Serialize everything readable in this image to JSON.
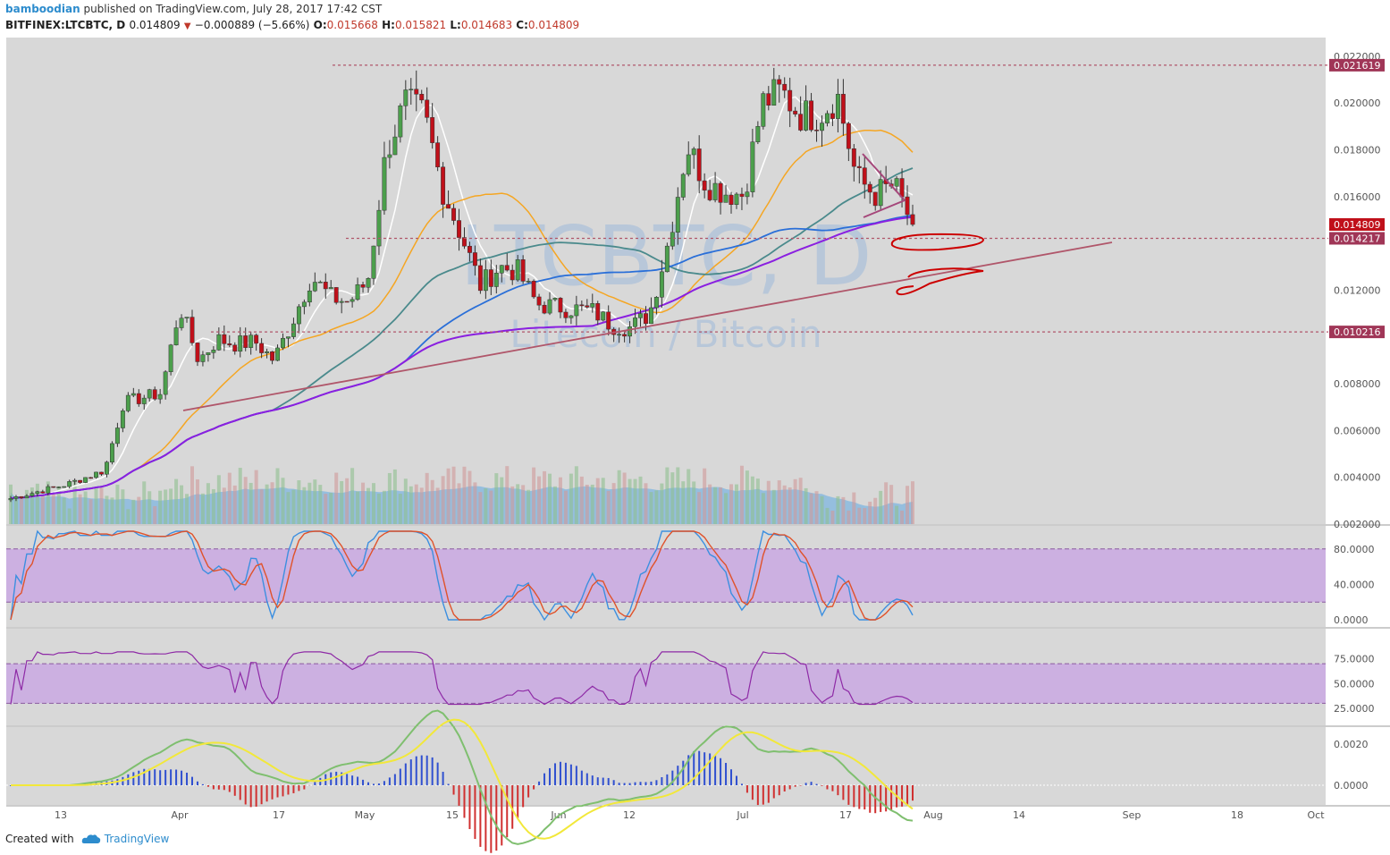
{
  "header": {
    "user": "bamboodian",
    "published_text": "published on TradingView.com, July 28, 2017 17:42 CST",
    "symbol": "BITFINEX:LTCBTC, D",
    "last": "0.014809",
    "change": "−0.000889 (−5.66%)",
    "o_label": "O:",
    "o_value": "0.015668",
    "h_label": "H:",
    "h_value": "0.015821",
    "l_label": "L:",
    "l_value": "0.014683",
    "c_label": "C:",
    "c_value": "0.014809"
  },
  "footer": {
    "created_with": "Created with",
    "brand": "TradingView"
  },
  "watermark": {
    "main": "LTCBTC, D",
    "sub": "Litecoin / Bitcoin"
  },
  "colors": {
    "up": "#4c9f4c",
    "down": "#c0101a",
    "ma_white": "#ffffff",
    "ma_orange": "#f5a623",
    "ma_teal": "#4a8a8c",
    "ma_blue": "#2a6fd8",
    "ma_purple": "#8a1fe0",
    "trend": "#b0566a",
    "level": "#b0566a",
    "stoch_k": "#3c8fe0",
    "stoch_d": "#e0522a",
    "band": "#c9a6e3",
    "rsi": "#8e2aa6",
    "volume_bg": "#7fb6e0"
  },
  "chart_data": {
    "type": "candlestick",
    "title": "",
    "ylim": [
      0.002,
      0.0228
    ],
    "y_ticks": [
      "0.022000",
      "0.020000",
      "0.018000",
      "0.016000",
      "0.012000",
      "0.008000",
      "0.006000",
      "0.004000",
      "0.002000"
    ],
    "x_ticks": [
      "13",
      "Apr",
      "17",
      "May",
      "15",
      "Jun",
      "12",
      "Jul",
      "17",
      "Aug",
      "14",
      "Sep",
      "18",
      "Oct"
    ],
    "price_labels": [
      {
        "value": "0.021619",
        "kind": "level"
      },
      {
        "value": "0.014809",
        "kind": "last"
      },
      {
        "value": "0.014217",
        "kind": "level"
      },
      {
        "value": "0.010216",
        "kind": "level"
      }
    ],
    "close_path": [
      0.0031,
      0.0033,
      0.0035,
      0.0037,
      0.004,
      0.0043,
      0.0072,
      0.0074,
      0.0076,
      0.0113,
      0.009,
      0.0099,
      0.0097,
      0.0098,
      0.009,
      0.0107,
      0.0126,
      0.0117,
      0.0115,
      0.0124,
      0.018,
      0.02,
      0.0195,
      0.0163,
      0.0143,
      0.0122,
      0.013,
      0.0128,
      0.0114,
      0.0113,
      0.0112,
      0.0111,
      0.0105,
      0.0104,
      0.011,
      0.0141,
      0.0182,
      0.0166,
      0.0162,
      0.0161,
      0.02,
      0.0205,
      0.0195,
      0.0195,
      0.0203,
      0.0168,
      0.0161,
      0.0165,
      0.0148
    ],
    "stoch_ticks": [
      "80.0000",
      "40.0000",
      "0.0000"
    ],
    "rsi_ticks": [
      "75.0000",
      "50.0000",
      "25.0000"
    ],
    "macd_ticks": [
      "0.0020",
      "0.0000"
    ]
  }
}
